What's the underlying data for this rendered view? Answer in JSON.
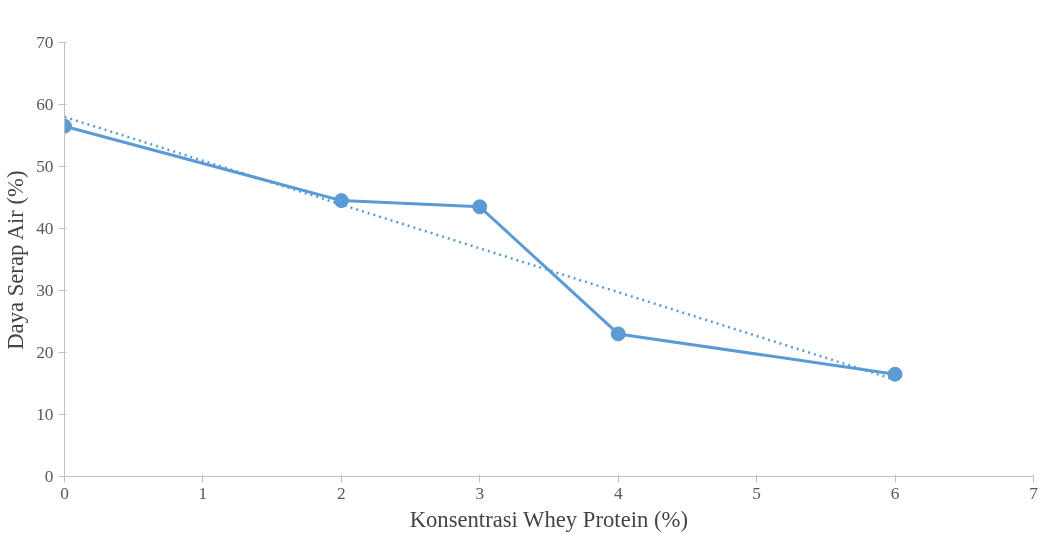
{
  "chart_data": {
    "type": "line",
    "xlabel": "Konsentrasi Whey Protein (%)",
    "ylabel": "Daya Serap Air (%)",
    "xlim": [
      0,
      7
    ],
    "xticks": [
      0,
      1,
      2,
      3,
      4,
      5,
      6,
      7
    ],
    "ylim": [
      0,
      70
    ],
    "yticks": [
      0,
      10,
      20,
      30,
      40,
      50,
      60,
      70
    ],
    "grid": false,
    "series": [
      {
        "color": "#5b9bd5",
        "x": [
          0,
          2,
          3,
          4,
          6
        ],
        "values": [
          56.5,
          44.5,
          43.5,
          23,
          16.5
        ],
        "marker": "circle",
        "line_style": "solid"
      },
      {
        "color": "#5b9bd5",
        "x": [
          0,
          6
        ],
        "values": [
          58.0,
          15.6
        ],
        "marker": "none",
        "line_style": "dotted"
      }
    ]
  }
}
